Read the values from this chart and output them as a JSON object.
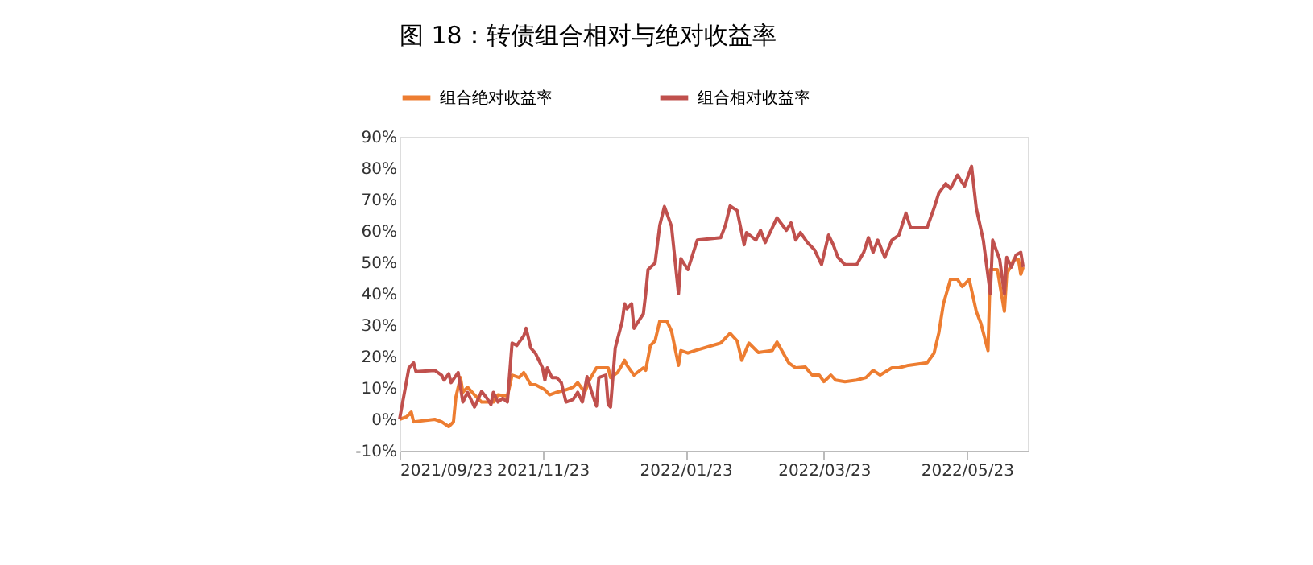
{
  "chart_data": {
    "type": "line",
    "title": "图 18：转债组合相对与绝对收益率",
    "legend": "top",
    "grid": false,
    "marker": "none",
    "line_style": "solid",
    "xlim": [
      "2021-09-23",
      "2022-06-18"
    ],
    "xticks": [
      {
        "value": "2021-09-23",
        "label": "2021/09/23"
      },
      {
        "value": "2021-11-23",
        "label": "2021/11/23"
      },
      {
        "value": "2022-01-23",
        "label": "2022/01/23"
      },
      {
        "value": "2022-03-23",
        "label": "2022/03/23"
      },
      {
        "value": "2022-05-23",
        "label": "2022/05/23"
      }
    ],
    "ylim": [
      -10,
      90
    ],
    "yticks": [
      {
        "value": -10,
        "label": "-10%"
      },
      {
        "value": 0,
        "label": "0%"
      },
      {
        "value": 10,
        "label": "10%"
      },
      {
        "value": 20,
        "label": "20%"
      },
      {
        "value": 30,
        "label": "30%"
      },
      {
        "value": 40,
        "label": "40%"
      },
      {
        "value": 50,
        "label": "50%"
      },
      {
        "value": 60,
        "label": "60%"
      },
      {
        "value": 70,
        "label": "70%"
      },
      {
        "value": 80,
        "label": "80%"
      },
      {
        "value": 90,
        "label": "90%"
      }
    ],
    "series": [
      {
        "name": "组合绝对收益率",
        "color": "#ed7d31",
        "x": [
          "2021-09-23",
          "2021-09-26",
          "2021-09-28",
          "2021-09-29",
          "2021-10-08",
          "2021-10-11",
          "2021-10-14",
          "2021-10-16",
          "2021-10-17",
          "2021-10-19",
          "2021-10-20",
          "2021-10-22",
          "2021-10-25",
          "2021-10-28",
          "2021-11-02",
          "2021-11-04",
          "2021-11-08",
          "2021-11-10",
          "2021-11-13",
          "2021-11-15",
          "2021-11-18",
          "2021-11-20",
          "2021-11-24",
          "2021-11-26",
          "2021-11-29",
          "2021-12-03",
          "2021-12-06",
          "2021-12-08",
          "2021-12-11",
          "2021-12-13",
          "2021-12-16",
          "2021-12-21",
          "2021-12-22",
          "2021-12-25",
          "2021-12-28",
          "2021-12-29",
          "2022-01-01",
          "2022-01-05",
          "2022-01-06",
          "2022-01-08",
          "2022-01-10",
          "2022-01-12",
          "2022-01-15",
          "2022-01-17",
          "2022-01-20",
          "2022-01-21",
          "2022-01-24",
          "2022-01-27",
          "2022-02-07",
          "2022-02-11",
          "2022-02-14",
          "2022-02-16",
          "2022-02-19",
          "2022-02-23",
          "2022-03-01",
          "2022-03-03",
          "2022-03-08",
          "2022-03-11",
          "2022-03-15",
          "2022-03-18",
          "2022-03-21",
          "2022-03-23",
          "2022-03-26",
          "2022-03-28",
          "2022-04-01",
          "2022-04-06",
          "2022-04-10",
          "2022-04-13",
          "2022-04-16",
          "2022-04-21",
          "2022-04-24",
          "2022-04-28",
          "2022-05-06",
          "2022-05-09",
          "2022-05-11",
          "2022-05-13",
          "2022-05-16",
          "2022-05-19",
          "2022-05-21",
          "2022-05-24",
          "2022-05-27",
          "2022-05-29",
          "2022-06-01",
          "2022-06-02",
          "2022-06-05",
          "2022-06-08",
          "2022-06-09",
          "2022-06-12",
          "2022-06-14",
          "2022-06-15",
          "2022-06-16"
        ],
        "values": [
          0,
          0.8,
          2.3,
          -0.8,
          0,
          -0.8,
          -2.3,
          -0.8,
          7,
          13.3,
          8.6,
          10.2,
          7.8,
          5.5,
          5.5,
          7.8,
          7.4,
          14.1,
          13.3,
          14.9,
          11,
          11,
          9.4,
          7.8,
          8.6,
          9.4,
          10.2,
          11.7,
          8.6,
          12.5,
          16.4,
          16.4,
          13.3,
          14.9,
          18.8,
          17.2,
          14.1,
          16.4,
          15.6,
          23.5,
          25,
          31.3,
          31.3,
          28.2,
          17.2,
          21.9,
          21.1,
          21.9,
          24.3,
          27.4,
          25,
          18.8,
          24.3,
          21.3,
          21.9,
          24.6,
          18,
          16.4,
          16.7,
          14.1,
          14.1,
          12,
          14.1,
          12.5,
          12,
          12.5,
          13.3,
          15.6,
          14.1,
          16.4,
          16.4,
          17.2,
          18,
          21.1,
          27.4,
          36.8,
          44.6,
          44.6,
          42.3,
          44.6,
          34.4,
          30.5,
          21.9,
          47.7,
          47.7,
          34.4,
          46.2,
          50.9,
          50.9,
          46.2,
          48.5
        ]
      },
      {
        "name": "组合相对收益率",
        "color": "#c0504d",
        "x": [
          "2021-09-23",
          "2021-09-27",
          "2021-09-29",
          "2021-09-30",
          "2021-10-08",
          "2021-10-11",
          "2021-10-12",
          "2021-10-14",
          "2021-10-15",
          "2021-10-18",
          "2021-10-20",
          "2021-10-22",
          "2021-10-25",
          "2021-10-28",
          "2021-10-30",
          "2021-11-01",
          "2021-11-02",
          "2021-11-04",
          "2021-11-06",
          "2021-11-08",
          "2021-11-10",
          "2021-11-12",
          "2021-11-15",
          "2021-11-16",
          "2021-11-18",
          "2021-11-20",
          "2021-11-23",
          "2021-11-24",
          "2021-11-25",
          "2021-11-27",
          "2021-11-29",
          "2021-12-01",
          "2021-12-03",
          "2021-12-06",
          "2021-12-08",
          "2021-12-10",
          "2021-12-12",
          "2021-12-14",
          "2021-12-16",
          "2021-12-17",
          "2021-12-20",
          "2021-12-21",
          "2021-12-22",
          "2021-12-24",
          "2021-12-27",
          "2021-12-28",
          "2021-12-29",
          "2021-12-31",
          "2022-01-01",
          "2022-01-05",
          "2022-01-06",
          "2022-01-07",
          "2022-01-10",
          "2022-01-12",
          "2022-01-14",
          "2022-01-17",
          "2022-01-20",
          "2022-01-21",
          "2022-01-24",
          "2022-01-26",
          "2022-01-28",
          "2022-02-07",
          "2022-02-09",
          "2022-02-11",
          "2022-02-14",
          "2022-02-17",
          "2022-02-18",
          "2022-02-22",
          "2022-02-24",
          "2022-02-26",
          "2022-03-03",
          "2022-03-07",
          "2022-03-09",
          "2022-03-11",
          "2022-03-13",
          "2022-03-16",
          "2022-03-19",
          "2022-03-22",
          "2022-03-25",
          "2022-03-27",
          "2022-03-29",
          "2022-04-01",
          "2022-04-06",
          "2022-04-09",
          "2022-04-11",
          "2022-04-13",
          "2022-04-15",
          "2022-04-18",
          "2022-04-21",
          "2022-04-24",
          "2022-04-27",
          "2022-04-29",
          "2022-05-06",
          "2022-05-09",
          "2022-05-11",
          "2022-05-14",
          "2022-05-16",
          "2022-05-19",
          "2022-05-22",
          "2022-05-25",
          "2022-05-27",
          "2022-05-30",
          "2022-06-02",
          "2022-06-03",
          "2022-06-06",
          "2022-06-08",
          "2022-06-09",
          "2022-06-11",
          "2022-06-13",
          "2022-06-15",
          "2022-06-16"
        ],
        "values": [
          0,
          16.4,
          18,
          15.2,
          15.6,
          14,
          12.5,
          14.5,
          11.7,
          14.9,
          5.5,
          8.6,
          3.9,
          8.9,
          7,
          4.7,
          8.6,
          5.5,
          6.7,
          5.5,
          24.3,
          23.5,
          26.6,
          29,
          22.7,
          21,
          16.4,
          12.5,
          16.4,
          13.3,
          13.3,
          11.7,
          5.5,
          6.3,
          8.6,
          5.5,
          13.6,
          8.6,
          4.2,
          13.3,
          14.1,
          4.7,
          3.9,
          22.7,
          31.3,
          36.8,
          35.2,
          36.8,
          29,
          33.6,
          40,
          47.7,
          49.8,
          61.8,
          67.8,
          61.5,
          40,
          51.2,
          47.7,
          52.4,
          57.1,
          57.9,
          61.8,
          68,
          66.5,
          55.6,
          59.5,
          57.1,
          60.2,
          56.3,
          64.2,
          60.2,
          62.6,
          57.1,
          59.5,
          56.3,
          54,
          49.3,
          58.7,
          55.6,
          51.6,
          49.3,
          49.3,
          53.2,
          57.9,
          53.2,
          57.1,
          51.6,
          57.1,
          58.7,
          65.7,
          61,
          61,
          67.3,
          72,
          75.1,
          73.5,
          77.8,
          74.3,
          80.6,
          67.3,
          57.1,
          40,
          57.1,
          50.9,
          40,
          51.6,
          48.5,
          52.4,
          53.2,
          48.5
        ]
      }
    ]
  }
}
